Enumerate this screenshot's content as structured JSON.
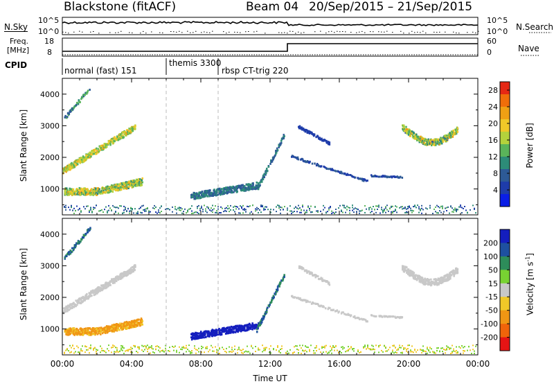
{
  "header": {
    "station": "Blackstone (fitACF)",
    "beam": "Beam 04",
    "date_range": "20/Sep/2015 – 21/Sep/2015"
  },
  "top_panel": {
    "left_label": "N.Sky",
    "right_label": "N.Search",
    "left_ticks": [
      "10^5",
      "10^0"
    ],
    "right_ticks": [
      "10^5",
      "10^0"
    ]
  },
  "freq_panel": {
    "left_label_line1": "Freq.",
    "left_label_line2": "[MHz]",
    "right_label": "Nave",
    "left_ticks": [
      "18",
      "8"
    ],
    "right_ticks": [
      "60",
      "0"
    ]
  },
  "cpid": {
    "label": "CPID",
    "modes": [
      {
        "name": "normal (fast) 151",
        "start_hour": 0
      },
      {
        "name": "themis 3300",
        "start_hour": 6
      },
      {
        "name": "rbsp CT-trig 220",
        "start_hour": 9
      }
    ]
  },
  "chart_data": [
    {
      "type": "heatmap",
      "title": "",
      "ylabel": "Slant Range [km]",
      "xlabel": "",
      "ylim": [
        180,
        4500
      ],
      "xlim_hours": [
        0,
        24
      ],
      "yticks": [
        1000,
        2000,
        3000,
        4000
      ],
      "colorbar": {
        "label": "Power [dB]",
        "ticks": [
          "28",
          "24",
          "20",
          "16",
          "12",
          "8",
          "4"
        ],
        "range": [
          0,
          30
        ],
        "colors": [
          "#0a1ee6",
          "#1e3caa",
          "#2d5a96",
          "#2d8c78",
          "#5ab45a",
          "#b4d23c",
          "#f0c828",
          "#f0a014",
          "#f06e0a",
          "#e62814"
        ]
      }
    },
    {
      "type": "heatmap",
      "title": "",
      "ylabel": "Slant Range [km]",
      "xlabel": "Time UT",
      "ylim": [
        180,
        4500
      ],
      "xlim_hours": [
        0,
        24
      ],
      "yticks": [
        1000,
        2000,
        3000,
        4000
      ],
      "xticks": [
        "00:00",
        "04:00",
        "08:00",
        "12:00",
        "16:00",
        "20:00",
        "00:00"
      ],
      "colorbar": {
        "label_prefix": "Velocity [m s",
        "label_sup": "-1",
        "label_suffix": "]",
        "ticks": [
          "200",
          "100",
          "50",
          "15",
          "-15",
          "-50",
          "-100",
          "-200"
        ],
        "colors": [
          "#141ebe",
          "#1e50a0",
          "#2d8c5a",
          "#78d232",
          "#c8c8c8",
          "#f0c828",
          "#f09614",
          "#f0640a",
          "#e61414"
        ]
      }
    }
  ]
}
